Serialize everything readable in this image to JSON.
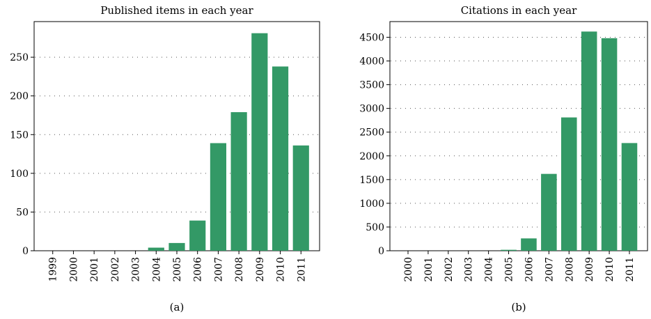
{
  "chart_data": [
    {
      "type": "bar",
      "title": "Published items in each year",
      "caption": "(a)",
      "categories": [
        "1999",
        "2000",
        "2001",
        "2002",
        "2003",
        "2004",
        "2005",
        "2006",
        "2007",
        "2008",
        "2009",
        "2010",
        "2011"
      ],
      "values": [
        0,
        0,
        0,
        0,
        0,
        4,
        10,
        39,
        139,
        179,
        281,
        238,
        136
      ],
      "yticks": [
        0,
        50,
        100,
        150,
        200,
        250
      ],
      "ylim": [
        0,
        296
      ],
      "xlabel": "",
      "ylabel": "",
      "grid": "y-dotted",
      "color": "#339966"
    },
    {
      "type": "bar",
      "title": "Citations in each year",
      "caption": "(b)",
      "categories": [
        "2000",
        "2001",
        "2002",
        "2003",
        "2004",
        "2005",
        "2006",
        "2007",
        "2008",
        "2009",
        "2010",
        "2011"
      ],
      "values": [
        0,
        0,
        0,
        0,
        0,
        20,
        260,
        1620,
        2810,
        4620,
        4480,
        2270
      ],
      "yticks": [
        0,
        500,
        1000,
        1500,
        2000,
        2500,
        3000,
        3500,
        4000,
        4500
      ],
      "ylim": [
        0,
        4830
      ],
      "xlabel": "",
      "ylabel": "",
      "grid": "y-dotted",
      "color": "#339966"
    }
  ]
}
